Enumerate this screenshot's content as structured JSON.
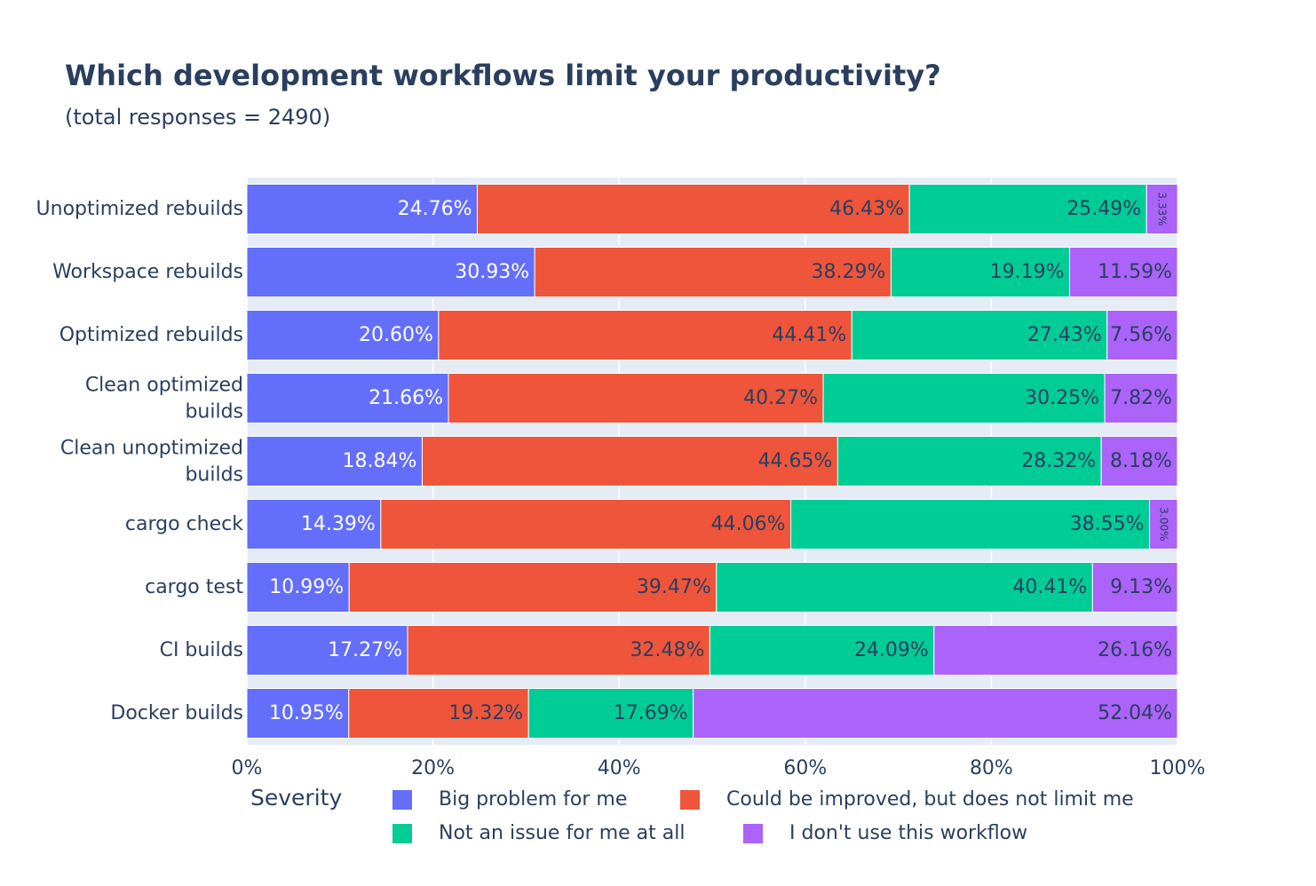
{
  "chart_data": {
    "type": "bar",
    "orientation": "horizontal",
    "stacked": true,
    "title": "Which development workflows limit your productivity?",
    "subtitle": "(total responses = 2490)",
    "categories": [
      "Unoptimized rebuilds",
      "Workspace rebuilds",
      "Optimized rebuilds",
      "Clean optimized builds",
      "Clean unoptimized builds",
      "cargo check",
      "cargo test",
      "CI builds",
      "Docker builds"
    ],
    "series": [
      {
        "name": "Big problem for me",
        "color": "#636efa",
        "label_color": "#ffffff",
        "values": [
          24.76,
          30.93,
          20.6,
          21.66,
          18.84,
          14.39,
          10.99,
          17.27,
          10.95
        ]
      },
      {
        "name": "Could be improved, but does not limit me",
        "color": "#ef553b",
        "label_color": "#2a3f5f",
        "values": [
          46.43,
          38.29,
          44.41,
          40.27,
          44.65,
          44.06,
          39.47,
          32.48,
          19.32
        ]
      },
      {
        "name": "Not an issue for me at all",
        "color": "#00cc96",
        "label_color": "#2a3f5f",
        "values": [
          25.49,
          19.19,
          27.43,
          30.25,
          28.32,
          38.55,
          40.41,
          24.09,
          17.69
        ]
      },
      {
        "name": "I don't use this workflow",
        "color": "#ab63fa",
        "label_color": "#2a3f5f",
        "values": [
          3.33,
          11.59,
          7.56,
          7.82,
          8.18,
          3.0,
          9.13,
          26.16,
          52.04
        ]
      }
    ],
    "xlim": [
      0,
      100
    ],
    "x_ticks": [
      "0%",
      "20%",
      "40%",
      "60%",
      "80%",
      "100%"
    ],
    "grid": true,
    "legend_title": "Severity",
    "legend_position": "bottom"
  }
}
